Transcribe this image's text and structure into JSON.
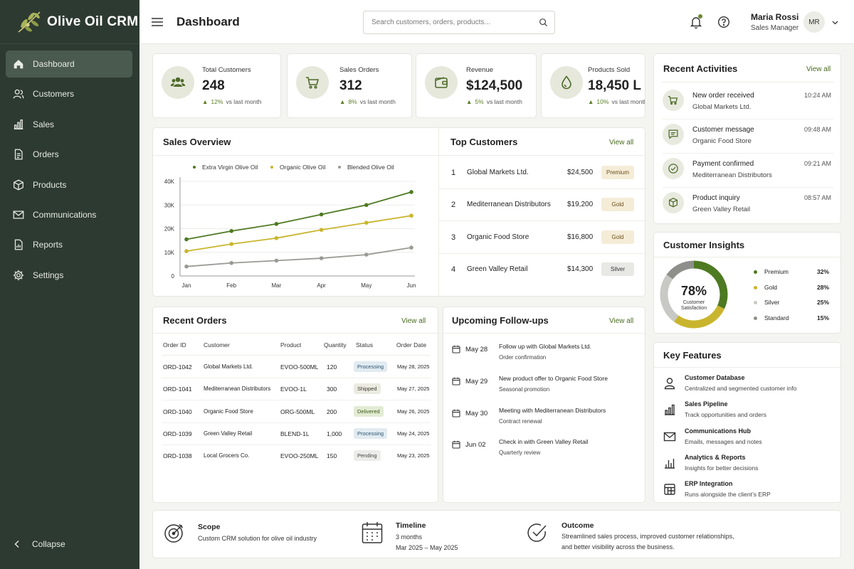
{
  "app": {
    "name": "Olive Oil CRM"
  },
  "sidebar": {
    "items": [
      {
        "label": "Dashboard",
        "icon": "home-icon"
      },
      {
        "label": "Customers",
        "icon": "users-icon"
      },
      {
        "label": "Sales",
        "icon": "bar-chart-icon"
      },
      {
        "label": "Orders",
        "icon": "document-icon"
      },
      {
        "label": "Products",
        "icon": "box-icon"
      },
      {
        "label": "Communications",
        "icon": "mail-icon"
      },
      {
        "label": "Reports",
        "icon": "report-icon"
      },
      {
        "label": "Settings",
        "icon": "gear-icon"
      }
    ],
    "active": "Dashboard",
    "collapse_label": "Collapse"
  },
  "header": {
    "title": "Dashboard",
    "search_placeholder": "Search customers, orders, products...",
    "user_name": "Maria Rossi",
    "user_role": "Sales Manager",
    "avatar_initials": "MR"
  },
  "stats": [
    {
      "label": "Total Customers",
      "value": "248",
      "delta": "12%",
      "delta_text": "vs last month",
      "icon": "users-icon"
    },
    {
      "label": "Sales Orders",
      "value": "312",
      "delta": "8%",
      "delta_text": "vs last month",
      "icon": "cart-icon"
    },
    {
      "label": "Revenue",
      "value": "$124,500",
      "delta": "5%",
      "delta_text": "vs last month",
      "icon": "wallet-icon"
    },
    {
      "label": "Products Sold",
      "value": "18,450 L",
      "delta": "10%",
      "delta_text": "vs last month",
      "icon": "drop-icon"
    }
  ],
  "sales_overview": {
    "title": "Sales Overview"
  },
  "chart_data": {
    "type": "line",
    "title": "Sales Overview",
    "x": [
      "Jan",
      "Feb",
      "Mar",
      "Apr",
      "May",
      "Jun"
    ],
    "y_ticks": [
      "0",
      "10K",
      "20K",
      "30K",
      "40K"
    ],
    "ylim": [
      0,
      40000
    ],
    "grid": true,
    "legend": "top",
    "series": [
      {
        "name": "Extra Virgin Olive Oil",
        "color": "#4e7a22",
        "values": [
          15500,
          19000,
          22000,
          26000,
          30000,
          35500
        ]
      },
      {
        "name": "Organic Olive Oil",
        "color": "#c9b52d",
        "values": [
          10500,
          13500,
          16000,
          19500,
          22500,
          25500
        ]
      },
      {
        "name": "Blended Olive Oil",
        "color": "#9a9a95",
        "values": [
          4000,
          5500,
          6500,
          7500,
          9000,
          12000
        ]
      }
    ]
  },
  "top_customers": {
    "title": "Top Customers",
    "view_all": "View all",
    "rows": [
      {
        "rank": "1",
        "name": "Global Markets Ltd.",
        "amount": "$24,500",
        "tier": "Premium"
      },
      {
        "rank": "2",
        "name": "Mediterranean Distributors",
        "amount": "$19,200",
        "tier": "Gold"
      },
      {
        "rank": "3",
        "name": "Organic Food Store",
        "amount": "$16,800",
        "tier": "Gold"
      },
      {
        "rank": "4",
        "name": "Green Valley Retail",
        "amount": "$14,300",
        "tier": "Silver"
      }
    ]
  },
  "recent_activities": {
    "title": "Recent Activities",
    "view_all": "View all",
    "items": [
      {
        "title": "New order received",
        "sub": "Global Markets Ltd.",
        "time": "10:24 AM",
        "icon": "cart-icon"
      },
      {
        "title": "Customer message",
        "sub": "Organic Food Store",
        "time": "09:48 AM",
        "icon": "message-icon"
      },
      {
        "title": "Payment confirmed",
        "sub": "Mediterranean Distributors",
        "time": "09:21 AM",
        "icon": "check-circle-icon"
      },
      {
        "title": "Product inquiry",
        "sub": "Green Valley Retail",
        "time": "08:57 AM",
        "icon": "box-icon"
      }
    ]
  },
  "customer_insights": {
    "title": "Customer Insights",
    "center_value": "78%",
    "center_label": "Customer Satisfaction",
    "segments": [
      {
        "name": "Premium",
        "pct": "32%",
        "value": 32,
        "color": "#4e7a22"
      },
      {
        "name": "Gold",
        "pct": "28%",
        "value": 28,
        "color": "#c9b52d"
      },
      {
        "name": "Silver",
        "pct": "25%",
        "value": 25,
        "color": "#c8c8c4"
      },
      {
        "name": "Standard",
        "pct": "15%",
        "value": 15,
        "color": "#8e8e8a"
      }
    ]
  },
  "recent_orders": {
    "title": "Recent Orders",
    "view_all": "View all",
    "columns": [
      "Order ID",
      "Customer",
      "Product",
      "Quantity",
      "Status",
      "Order Date"
    ],
    "rows": [
      {
        "id": "ORD-1042",
        "customer": "Global Markets Ltd.",
        "product": "EVOO-500ML",
        "qty": "120",
        "status": "Processing",
        "date": "May 28, 2025"
      },
      {
        "id": "ORD-1041",
        "customer": "Mediterranean Distributors",
        "product": "EVOO-1L",
        "qty": "300",
        "status": "Shipped",
        "date": "May 27, 2025"
      },
      {
        "id": "ORD-1040",
        "customer": "Organic Food Store",
        "product": "ORG-500ML",
        "qty": "200",
        "status": "Delivered",
        "date": "May 26, 2025"
      },
      {
        "id": "ORD-1039",
        "customer": "Green Valley Retail",
        "product": "BLEND-1L",
        "qty": "1,000",
        "status": "Processing",
        "date": "May 24, 2025"
      },
      {
        "id": "ORD-1038",
        "customer": "Local Grocers Co.",
        "product": "EVOO-250ML",
        "qty": "150",
        "status": "Pending",
        "date": "May 23, 2025"
      }
    ]
  },
  "followups": {
    "title": "Upcoming Follow-ups",
    "view_all": "View all",
    "items": [
      {
        "date": "May 28",
        "title": "Follow up with Global Markets Ltd.",
        "sub": "Order confirmation"
      },
      {
        "date": "May 29",
        "title": "New product offer to Organic Food Store",
        "sub": "Seasonal promotion"
      },
      {
        "date": "May 30",
        "title": "Meeting with Mediterranean Distributors",
        "sub": "Contract renewal"
      },
      {
        "date": "Jun 02",
        "title": "Check in with Green Valley Retail",
        "sub": "Quarterly review"
      }
    ]
  },
  "key_features": {
    "title": "Key Features",
    "items": [
      {
        "title": "Customer Database",
        "sub": "Centralized and segmented customer info",
        "icon": "user-icon"
      },
      {
        "title": "Sales Pipeline",
        "sub": "Track opportunities and orders",
        "icon": "bar-chart-icon"
      },
      {
        "title": "Communications Hub",
        "sub": "Emails, messages and notes",
        "icon": "mail-icon"
      },
      {
        "title": "Analytics & Reports",
        "sub": "Insights for better decisions",
        "icon": "analytics-icon"
      },
      {
        "title": "ERP Integration",
        "sub": "Runs alongside the client’s ERP",
        "icon": "erp-icon"
      }
    ]
  },
  "footer": {
    "scope_title": "Scope",
    "scope_text": "Custom CRM solution for olive oil industry",
    "timeline_title": "Timeline",
    "timeline_line1": "3 months",
    "timeline_line2": "Mar 2025 – May 2025",
    "outcome_title": "Outcome",
    "outcome_line1": "Streamlined sales process, improved customer relationships,",
    "outcome_line2": "and better visibility across the business."
  }
}
